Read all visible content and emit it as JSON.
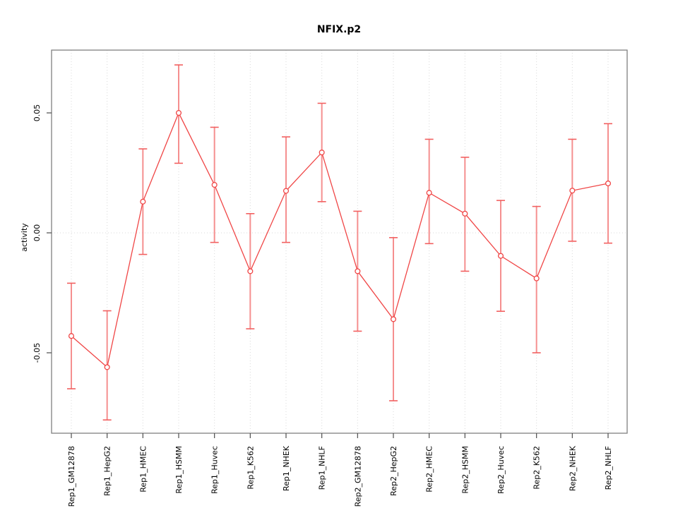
{
  "chart_data": {
    "type": "line",
    "title": "NFIX.p2",
    "xlabel": "",
    "ylabel": "activity",
    "categories": [
      "Rep1_GM12878",
      "Rep1_HepG2",
      "Rep1_HMEC",
      "Rep1_HSMM",
      "Rep1_Huvec",
      "Rep1_K562",
      "Rep1_NHEK",
      "Rep1_NHLF",
      "Rep2_GM12878",
      "Rep2_HepG2",
      "Rep2_HMEC",
      "Rep2_HSMM",
      "Rep2_Huvec",
      "Rep2_K562",
      "Rep2_NHEK",
      "Rep2_NHLF"
    ],
    "series": [
      {
        "name": "activity",
        "values": [
          -0.043,
          -0.056,
          0.013,
          0.05,
          0.02,
          -0.016,
          0.0175,
          0.0335,
          -0.016,
          -0.036,
          0.0167,
          0.008,
          -0.0096,
          -0.019,
          0.0176,
          0.0206
        ],
        "error_upper": [
          -0.021,
          -0.0325,
          0.035,
          0.07,
          0.044,
          0.008,
          0.04,
          0.054,
          0.009,
          -0.002,
          0.039,
          0.0315,
          0.0135,
          0.011,
          0.039,
          0.0455
        ],
        "error_lower": [
          -0.065,
          -0.078,
          -0.009,
          0.029,
          -0.004,
          -0.04,
          -0.004,
          0.013,
          -0.041,
          -0.07,
          -0.0045,
          -0.016,
          -0.0327,
          -0.05,
          -0.0035,
          -0.0043
        ]
      }
    ],
    "yticks": [
      {
        "value": 0.05,
        "label": "0.05"
      },
      {
        "value": 0.0,
        "label": "0.00"
      },
      {
        "value": -0.05,
        "label": "-0.05"
      }
    ],
    "ylim": [
      -0.0835,
      0.0762
    ],
    "grid": {
      "vertical_dotted_per_category": true,
      "horizontal_dotted_at_zero": true
    },
    "legend": "none",
    "marker": "open-circle",
    "colors": {
      "series_line": "#f04646",
      "marker_stroke": "#f04646",
      "error_bar": "#f58f8f",
      "error_cap": "#f26060",
      "gridline": "#d9d9d9",
      "axis_box": "#808080",
      "tick": "#4d4d4d",
      "text": "#000000",
      "background": "#ffffff"
    }
  }
}
